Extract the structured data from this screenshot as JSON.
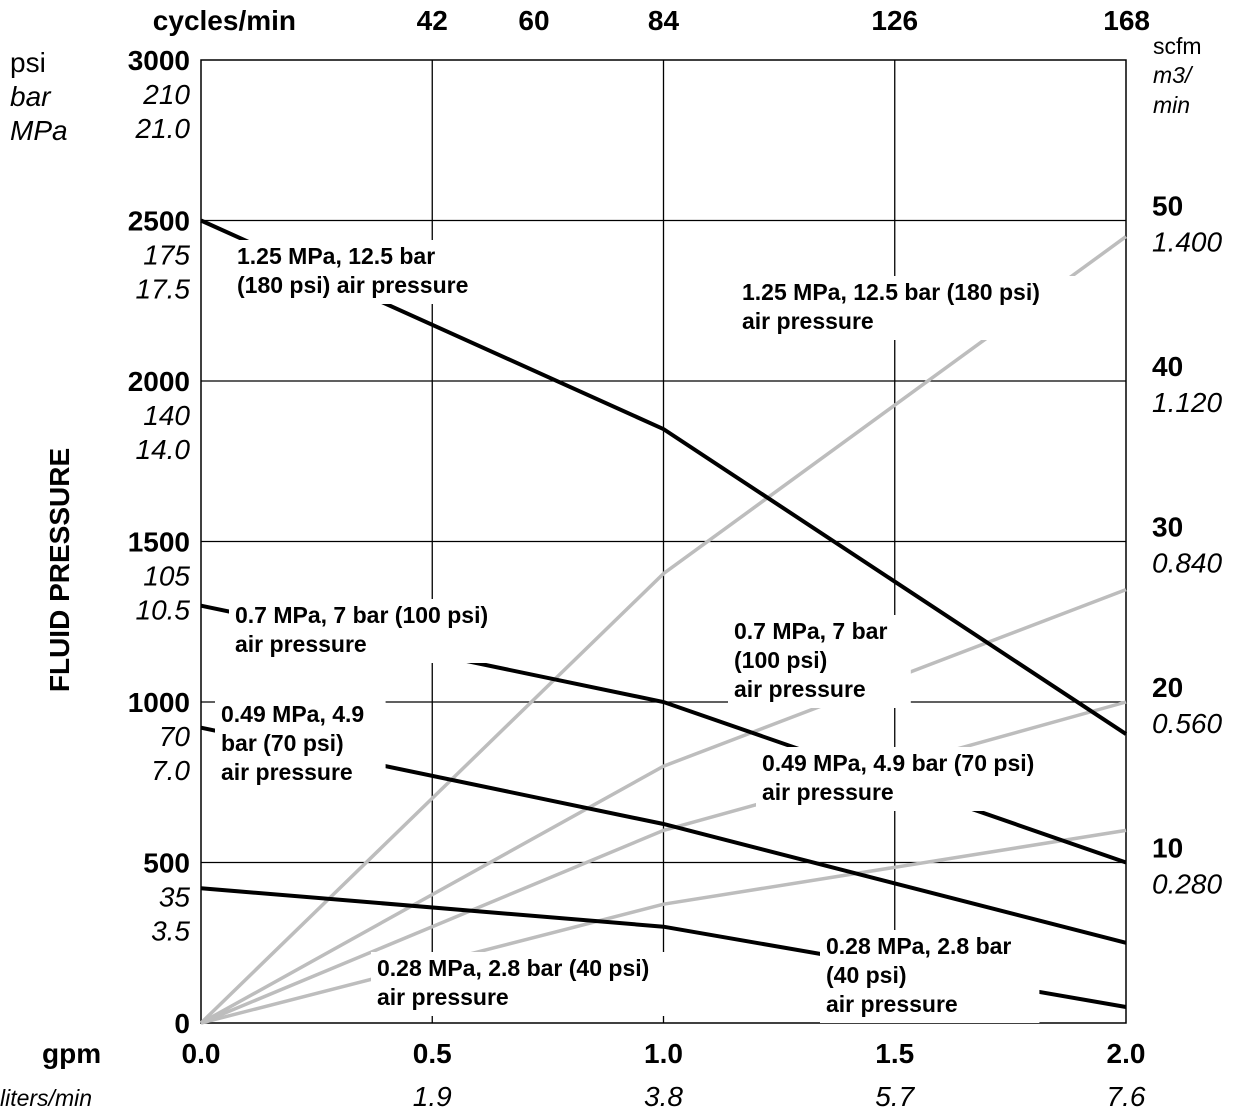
{
  "chart_data": {
    "type": "line",
    "x_axis": {
      "label_primary": "gpm",
      "label_secondary": "liters/min",
      "range": [
        0,
        2
      ],
      "ticks": [
        "0.0",
        "0.5",
        "1.0",
        "1.5",
        "2.0"
      ],
      "ticks_secondary": [
        "1.9",
        "3.8",
        "5.7",
        "7.6"
      ]
    },
    "top_axis": {
      "label": "cycles/min",
      "ticks": [
        {
          "gpm": 0.5,
          "label": "42"
        },
        {
          "gpm": 0.72,
          "label": "60"
        },
        {
          "gpm": 1.0,
          "label": "84"
        },
        {
          "gpm": 1.5,
          "label": "126"
        },
        {
          "gpm": 2.0,
          "label": "168"
        }
      ]
    },
    "left_axis": {
      "title": "FLUID PRESSURE",
      "unit_labels": [
        "psi",
        "bar",
        "MPa"
      ],
      "range": [
        0,
        3000
      ],
      "ticks": [
        {
          "psi": 3000,
          "psi_label": "3000",
          "bar": "210",
          "mpa": "21.0"
        },
        {
          "psi": 2500,
          "psi_label": "2500",
          "bar": "175",
          "mpa": "17.5"
        },
        {
          "psi": 2000,
          "psi_label": "2000",
          "bar": "140",
          "mpa": "14.0"
        },
        {
          "psi": 1500,
          "psi_label": "1500",
          "bar": "105",
          "mpa": "10.5"
        },
        {
          "psi": 1000,
          "psi_label": "1000",
          "bar": "70",
          "mpa": "7.0"
        },
        {
          "psi": 500,
          "psi_label": "500",
          "bar": "35",
          "mpa": "3.5"
        },
        {
          "psi": 0,
          "psi_label": "0",
          "bar": "",
          "mpa": ""
        }
      ]
    },
    "right_axis": {
      "unit_labels": [
        "scfm",
        "m3/",
        "min"
      ],
      "range": [
        0,
        60
      ],
      "ticks": [
        {
          "scfm": 50,
          "scfm_label": "50",
          "m3": "1.400"
        },
        {
          "scfm": 40,
          "scfm_label": "40",
          "m3": "1.120"
        },
        {
          "scfm": 30,
          "scfm_label": "30",
          "m3": "0.840"
        },
        {
          "scfm": 20,
          "scfm_label": "20",
          "m3": "0.560"
        },
        {
          "scfm": 10,
          "scfm_label": "10",
          "m3": "0.280"
        }
      ]
    },
    "grid": true,
    "fluid_pressure_series": [
      {
        "air_pressure": "180 psi",
        "x": [
          0,
          1.0,
          2.0
        ],
        "y": [
          2500,
          1850,
          900
        ]
      },
      {
        "air_pressure": "100 psi",
        "x": [
          0,
          1.0,
          2.0
        ],
        "y": [
          1300,
          1000,
          500
        ]
      },
      {
        "air_pressure": "70 psi",
        "x": [
          0,
          1.0,
          2.0
        ],
        "y": [
          920,
          620,
          250
        ]
      },
      {
        "air_pressure": "40 psi",
        "x": [
          0,
          1.0,
          2.0
        ],
        "y": [
          420,
          300,
          50
        ]
      }
    ],
    "air_consumption_series": [
      {
        "air_pressure": "180 psi",
        "x": [
          0,
          1.0,
          2.0
        ],
        "y": [
          0,
          28,
          49
        ]
      },
      {
        "air_pressure": "100 psi",
        "x": [
          0,
          1.0,
          2.0
        ],
        "y": [
          0,
          16,
          27
        ]
      },
      {
        "air_pressure": "70 psi",
        "x": [
          0,
          1.0,
          2.0
        ],
        "y": [
          0,
          12,
          20
        ]
      },
      {
        "air_pressure": "40 psi",
        "x": [
          0,
          1.0,
          2.0
        ],
        "y": [
          0,
          7.4,
          12
        ]
      }
    ],
    "annotations": [
      {
        "id": "f180",
        "lines": [
          "1.25 MPa, 12.5 bar",
          "(180 psi) air pressure"
        ]
      },
      {
        "id": "a180",
        "lines": [
          "1.25 MPa, 12.5 bar (180 psi)",
          "air pressure"
        ]
      },
      {
        "id": "f100",
        "lines": [
          "0.7 MPa, 7 bar (100 psi)",
          "air pressure"
        ]
      },
      {
        "id": "a100",
        "lines": [
          "0.7 MPa, 7 bar",
          "(100 psi)",
          "air pressure"
        ]
      },
      {
        "id": "f70",
        "lines": [
          "0.49 MPa, 4.9",
          "bar (70 psi)",
          "air pressure"
        ]
      },
      {
        "id": "a70",
        "lines": [
          "0.49 MPa, 4.9 bar (70 psi)",
          "air pressure"
        ]
      },
      {
        "id": "a40",
        "lines": [
          "0.28 MPa, 2.8 bar (40 psi)",
          "air pressure"
        ]
      },
      {
        "id": "f40",
        "lines": [
          "0.28 MPa, 2.8 bar",
          "(40 psi)",
          "air pressure"
        ]
      }
    ]
  }
}
